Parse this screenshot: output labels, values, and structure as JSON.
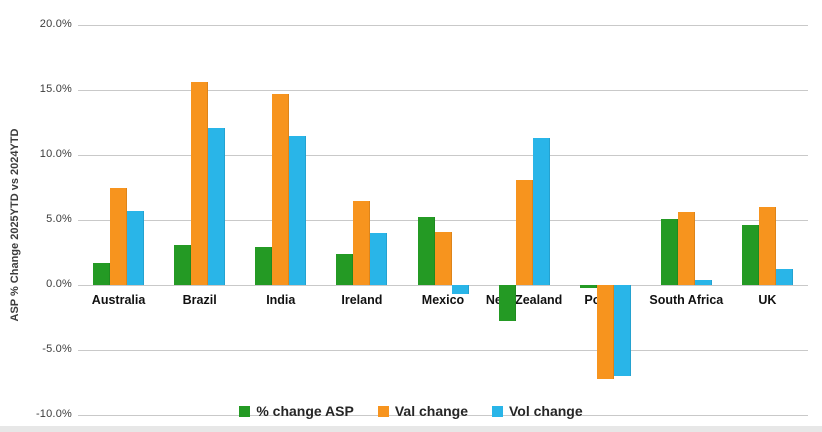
{
  "chart_data": {
    "type": "bar",
    "title": "",
    "xlabel": "",
    "ylabel": "ASP % Change 2025YTD vs 2024YTD",
    "ylim": [
      -10,
      20
    ],
    "grid": true,
    "legend_position": "bottom-center",
    "yticks": [
      20,
      15,
      10,
      5,
      0,
      -5,
      -10
    ],
    "ytick_labels": [
      "20.0%",
      "15.0%",
      "10.0%",
      "5.0%",
      "0.0%",
      "-5.0%",
      "-10.0%"
    ],
    "categories": [
      "Australia",
      "Brazil",
      "India",
      "Ireland",
      "Mexico",
      "New Zealand",
      "Poland",
      "South Africa",
      "UK"
    ],
    "series": [
      {
        "name": "% change ASP",
        "color": "#249a24",
        "values": [
          1.7,
          3.1,
          2.9,
          2.4,
          5.2,
          -2.8,
          -0.2,
          5.1,
          4.6
        ]
      },
      {
        "name": "Val change",
        "color": "#f7941e",
        "values": [
          7.5,
          15.6,
          14.7,
          6.5,
          4.1,
          8.1,
          -7.2,
          5.6,
          6.0
        ]
      },
      {
        "name": "Vol change",
        "color": "#29b5e8",
        "values": [
          5.7,
          12.1,
          11.5,
          4.0,
          -0.7,
          11.3,
          -7.0,
          0.4,
          1.2
        ]
      }
    ]
  },
  "colors": {
    "background": "#ffffff",
    "gridline": "#c9c9c9",
    "tick_text": "#3c3c3c",
    "category_text": "#111111",
    "legend_text": "#262626",
    "bottom_strip": "#e7e7e7",
    "series_green": "#249a24",
    "series_orange": "#f7941e",
    "series_blue": "#29b5e8"
  }
}
